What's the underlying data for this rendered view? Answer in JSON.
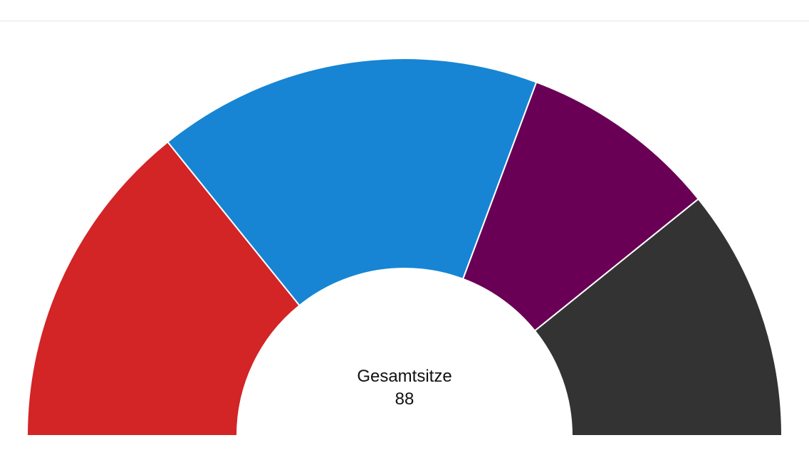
{
  "chart_data": {
    "type": "pie",
    "subtype": "half-donut",
    "center_label": "Gesamtsitze",
    "total": "88",
    "series": [
      {
        "value": 25,
        "color": "#d32426"
      },
      {
        "value": 29,
        "color": "#1785d3"
      },
      {
        "value": 15,
        "color": "#690055"
      },
      {
        "value": 19,
        "color": "#333333"
      }
    ]
  }
}
